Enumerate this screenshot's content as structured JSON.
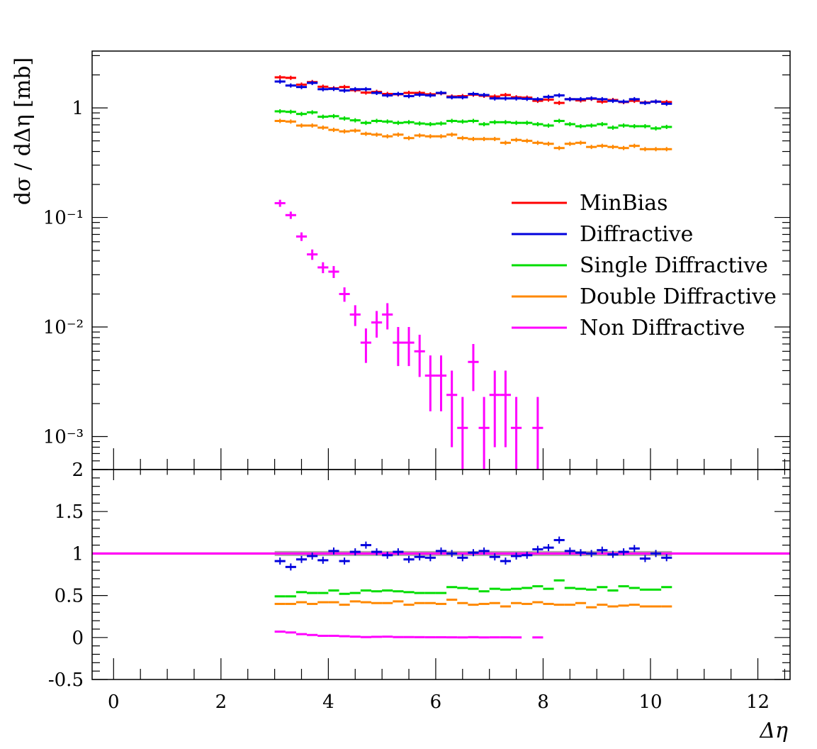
{
  "chart_data": [
    {
      "type": "scatter",
      "panel": "main",
      "ylabel": "dσ / dΔη [mb]",
      "yscale": "log",
      "xlim": [
        -0.4,
        12.6
      ],
      "ylim": [
        0.0005,
        3.3
      ],
      "ytick_labels": [
        {
          "value": 1,
          "label": "1"
        },
        {
          "value": 0.1,
          "label": "10⁻¹"
        },
        {
          "value": 0.01,
          "label": "10⁻²"
        },
        {
          "value": 0.001,
          "label": "10⁻³"
        }
      ],
      "legend": {
        "placement": "right"
      },
      "series": [
        {
          "name": "MinBias",
          "color": "#ff0000",
          "x": [
            3.1,
            3.3,
            3.5,
            3.7,
            3.9,
            4.1,
            4.3,
            4.5,
            4.7,
            4.9,
            5.1,
            5.3,
            5.5,
            5.7,
            5.9,
            6.1,
            6.3,
            6.5,
            6.7,
            6.9,
            7.1,
            7.3,
            7.5,
            7.7,
            7.9,
            8.1,
            8.3,
            8.5,
            8.7,
            8.9,
            9.1,
            9.3,
            9.5,
            9.7,
            9.9,
            10.1,
            10.3
          ],
          "y": [
            1.9,
            1.88,
            1.63,
            1.72,
            1.56,
            1.51,
            1.55,
            1.45,
            1.38,
            1.4,
            1.34,
            1.33,
            1.37,
            1.37,
            1.33,
            1.36,
            1.27,
            1.28,
            1.32,
            1.29,
            1.27,
            1.31,
            1.25,
            1.24,
            1.16,
            1.19,
            1.11,
            1.2,
            1.17,
            1.21,
            1.14,
            1.18,
            1.13,
            1.16,
            1.12,
            1.14,
            1.13
          ]
        },
        {
          "name": "Diffractive",
          "color": "#0000dd",
          "x": [
            3.1,
            3.3,
            3.5,
            3.7,
            3.9,
            4.1,
            4.3,
            4.5,
            4.7,
            4.9,
            5.1,
            5.3,
            5.5,
            5.7,
            5.9,
            6.1,
            6.3,
            6.5,
            6.7,
            6.9,
            7.1,
            7.3,
            7.5,
            7.7,
            7.9,
            8.1,
            8.3,
            8.5,
            8.7,
            8.9,
            9.1,
            9.3,
            9.5,
            9.7,
            9.9,
            10.1,
            10.3
          ],
          "y": [
            1.74,
            1.6,
            1.55,
            1.69,
            1.48,
            1.49,
            1.44,
            1.48,
            1.48,
            1.37,
            1.3,
            1.34,
            1.28,
            1.32,
            1.3,
            1.37,
            1.25,
            1.25,
            1.34,
            1.31,
            1.22,
            1.22,
            1.22,
            1.21,
            1.2,
            1.26,
            1.3,
            1.2,
            1.2,
            1.22,
            1.2,
            1.16,
            1.14,
            1.2,
            1.11,
            1.14,
            1.09
          ]
        },
        {
          "name": "Single Diffractive",
          "color": "#00dd00",
          "x": [
            3.1,
            3.3,
            3.5,
            3.7,
            3.9,
            4.1,
            4.3,
            4.5,
            4.7,
            4.9,
            5.1,
            5.3,
            5.5,
            5.7,
            5.9,
            6.1,
            6.3,
            6.5,
            6.7,
            6.9,
            7.1,
            7.3,
            7.5,
            7.7,
            7.9,
            8.1,
            8.3,
            8.5,
            8.7,
            8.9,
            9.1,
            9.3,
            9.5,
            9.7,
            9.9,
            10.1,
            10.3
          ],
          "y": [
            0.93,
            0.92,
            0.88,
            0.91,
            0.83,
            0.84,
            0.8,
            0.77,
            0.73,
            0.76,
            0.75,
            0.73,
            0.74,
            0.72,
            0.71,
            0.72,
            0.76,
            0.75,
            0.76,
            0.71,
            0.74,
            0.74,
            0.73,
            0.73,
            0.71,
            0.69,
            0.76,
            0.71,
            0.68,
            0.69,
            0.71,
            0.66,
            0.69,
            0.68,
            0.68,
            0.65,
            0.67
          ]
        },
        {
          "name": "Double Diffractive",
          "color": "#ff8800",
          "x": [
            3.1,
            3.3,
            3.5,
            3.7,
            3.9,
            4.1,
            4.3,
            4.5,
            4.7,
            4.9,
            5.1,
            5.3,
            5.5,
            5.7,
            5.9,
            6.1,
            6.3,
            6.5,
            6.7,
            6.9,
            7.1,
            7.3,
            7.5,
            7.7,
            7.9,
            8.1,
            8.3,
            8.5,
            8.7,
            8.9,
            9.1,
            9.3,
            9.5,
            9.7,
            9.9,
            10.1,
            10.3
          ],
          "y": [
            0.76,
            0.75,
            0.69,
            0.69,
            0.66,
            0.63,
            0.61,
            0.62,
            0.58,
            0.57,
            0.55,
            0.57,
            0.53,
            0.56,
            0.55,
            0.55,
            0.57,
            0.53,
            0.52,
            0.52,
            0.52,
            0.48,
            0.51,
            0.5,
            0.48,
            0.47,
            0.43,
            0.47,
            0.48,
            0.44,
            0.45,
            0.44,
            0.43,
            0.45,
            0.42,
            0.42,
            0.42
          ]
        },
        {
          "name": "Non Diffractive",
          "color": "#ff00ff",
          "x": [
            3.1,
            3.3,
            3.5,
            3.7,
            3.9,
            4.1,
            4.3,
            4.5,
            4.7,
            4.9,
            5.1,
            5.3,
            5.5,
            5.7,
            5.9,
            6.1,
            6.3,
            6.5,
            6.7,
            6.9,
            7.1,
            7.3,
            7.5,
            7.9
          ],
          "y": [
            0.135,
            0.105,
            0.067,
            0.046,
            0.035,
            0.032,
            0.02,
            0.013,
            0.0072,
            0.011,
            0.013,
            0.0072,
            0.0072,
            0.006,
            0.0036,
            0.0036,
            0.0024,
            0.0012,
            0.0048,
            0.0012,
            0.0024,
            0.0024,
            0.0012,
            0.0012
          ],
          "yerr": [
            0.01,
            0.008,
            0.006,
            0.005,
            0.004,
            0.004,
            0.003,
            0.0028,
            0.0025,
            0.003,
            0.0035,
            0.0028,
            0.0028,
            0.0025,
            0.0019,
            0.0019,
            0.0016,
            0.0011,
            0.0022,
            0.0011,
            0.0016,
            0.0016,
            0.0011,
            0.0011
          ]
        }
      ]
    },
    {
      "type": "scatter",
      "panel": "ratio",
      "xlabel": "Δη",
      "xlim": [
        -0.4,
        12.6
      ],
      "ylim": [
        -0.5,
        2.0
      ],
      "xtick_labels": [
        "0",
        "2",
        "4",
        "6",
        "8",
        "10",
        "12"
      ],
      "ytick_labels": [
        "-0.5",
        "0",
        "0.5",
        "1",
        "1.5",
        "2"
      ],
      "reference_band": {
        "color": "#aaaaaa",
        "x": [
          3.0,
          10.4
        ],
        "y": [
          0.97,
          1.03
        ]
      },
      "reference_lines": [
        {
          "name": "MinBias",
          "color": "#ff0000",
          "value": 1
        },
        {
          "name": "Non Diffractive",
          "color": "#ff00ff",
          "value": 1
        }
      ],
      "series": [
        {
          "name": "Diffractive",
          "color": "#0000dd",
          "x": [
            3.1,
            3.3,
            3.5,
            3.7,
            3.9,
            4.1,
            4.3,
            4.5,
            4.7,
            4.9,
            5.1,
            5.3,
            5.5,
            5.7,
            5.9,
            6.1,
            6.3,
            6.5,
            6.7,
            6.9,
            7.1,
            7.3,
            7.5,
            7.7,
            7.9,
            8.1,
            8.3,
            8.5,
            8.7,
            8.9,
            9.1,
            9.3,
            9.5,
            9.7,
            9.9,
            10.1,
            10.3
          ],
          "y": [
            0.91,
            0.84,
            0.93,
            0.97,
            0.92,
            1.03,
            0.91,
            1.02,
            1.1,
            1.02,
            0.98,
            1.02,
            0.93,
            0.96,
            0.95,
            1.03,
            1.0,
            0.95,
            1.01,
            1.03,
            0.96,
            0.91,
            0.97,
            0.98,
            1.05,
            1.07,
            1.16,
            1.03,
            1.01,
            1.0,
            1.04,
            0.99,
            1.02,
            1.06,
            0.94,
            1.0,
            0.95
          ]
        },
        {
          "name": "Single Diffractive",
          "color": "#00dd00",
          "x": [
            3.1,
            3.3,
            3.5,
            3.7,
            3.9,
            4.1,
            4.3,
            4.5,
            4.7,
            4.9,
            5.1,
            5.3,
            5.5,
            5.7,
            5.9,
            6.1,
            6.3,
            6.5,
            6.7,
            6.9,
            7.1,
            7.3,
            7.5,
            7.7,
            7.9,
            8.1,
            8.3,
            8.5,
            8.7,
            8.9,
            9.1,
            9.3,
            9.5,
            9.7,
            9.9,
            10.1,
            10.3
          ],
          "y": [
            0.49,
            0.49,
            0.54,
            0.53,
            0.53,
            0.56,
            0.52,
            0.53,
            0.56,
            0.55,
            0.56,
            0.55,
            0.54,
            0.53,
            0.53,
            0.53,
            0.6,
            0.59,
            0.58,
            0.55,
            0.58,
            0.57,
            0.58,
            0.59,
            0.61,
            0.58,
            0.68,
            0.59,
            0.58,
            0.57,
            0.6,
            0.56,
            0.61,
            0.59,
            0.57,
            0.57,
            0.6
          ]
        },
        {
          "name": "Double Diffractive",
          "color": "#ff8800",
          "x": [
            3.1,
            3.3,
            3.5,
            3.7,
            3.9,
            4.1,
            4.3,
            4.5,
            4.7,
            4.9,
            5.1,
            5.3,
            5.5,
            5.7,
            5.9,
            6.1,
            6.3,
            6.5,
            6.7,
            6.9,
            7.1,
            7.3,
            7.5,
            7.7,
            7.9,
            8.1,
            8.3,
            8.5,
            8.7,
            8.9,
            9.1,
            9.3,
            9.5,
            9.7,
            9.9,
            10.1,
            10.3
          ],
          "y": [
            0.4,
            0.4,
            0.42,
            0.4,
            0.42,
            0.42,
            0.39,
            0.43,
            0.42,
            0.41,
            0.41,
            0.43,
            0.39,
            0.41,
            0.41,
            0.4,
            0.45,
            0.41,
            0.39,
            0.4,
            0.41,
            0.37,
            0.41,
            0.4,
            0.42,
            0.4,
            0.39,
            0.39,
            0.41,
            0.36,
            0.39,
            0.37,
            0.38,
            0.39,
            0.37,
            0.37,
            0.37
          ]
        },
        {
          "name": "Non Diffractive",
          "color": "#ff00ff",
          "x": [
            3.1,
            3.3,
            3.5,
            3.7,
            3.9,
            4.1,
            4.3,
            4.5,
            4.7,
            4.9,
            5.1,
            5.3,
            5.5,
            5.7,
            5.9,
            6.1,
            6.3,
            6.5,
            6.7,
            6.9,
            7.1,
            7.3,
            7.5,
            7.9
          ],
          "y": [
            0.07,
            0.06,
            0.04,
            0.03,
            0.02,
            0.02,
            0.015,
            0.01,
            0.005,
            0.008,
            0.01,
            0.005,
            0.005,
            0.004,
            0.003,
            0.003,
            0.002,
            0.001,
            0.004,
            0.001,
            0.002,
            0.002,
            0.001,
            0.001
          ]
        }
      ]
    }
  ]
}
